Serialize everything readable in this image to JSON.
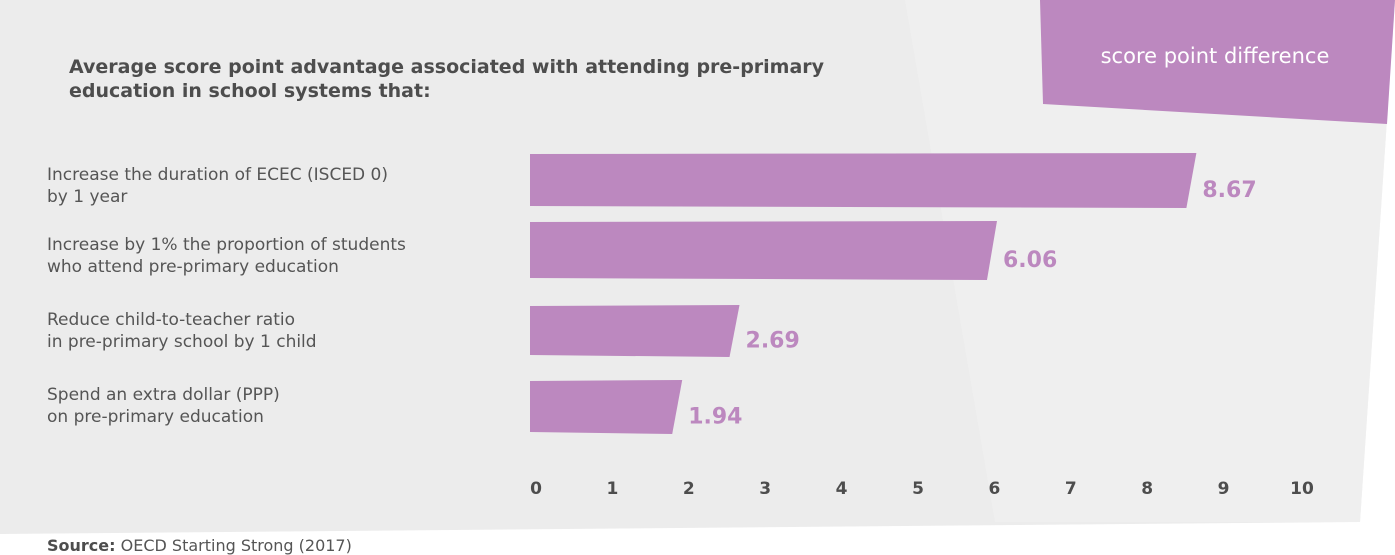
{
  "chart_data": {
    "type": "bar",
    "orientation": "horizontal",
    "title_lines": [
      "Average score point advantage associated with attending pre-primary",
      "education in school systems that:"
    ],
    "unit_label": "score point difference",
    "categories": [
      {
        "lines": [
          "Increase the duration of ECEC (ISCED 0)",
          "by 1 year"
        ]
      },
      {
        "lines": [
          "Increase by 1% the proportion of students",
          "who attend pre-primary education"
        ]
      },
      {
        "lines": [
          "Reduce child-to-teacher ratio",
          "in pre-primary school by 1 child"
        ]
      },
      {
        "lines": [
          "Spend an extra dollar (PPP)",
          "on pre-primary education"
        ]
      }
    ],
    "values": [
      8.67,
      6.06,
      2.69,
      1.94
    ],
    "value_labels": [
      "8.67",
      "6.06",
      "2.69",
      "1.94"
    ],
    "xlim": [
      0,
      10
    ],
    "x_ticks": [
      "0",
      "1",
      "2",
      "3",
      "4",
      "5",
      "6",
      "7",
      "8",
      "9",
      "10"
    ],
    "grid": false,
    "colors": {
      "bar": "#bc88bf",
      "value_label": "#bc88bf",
      "badge": "#bc88bf",
      "panel": "#ececec",
      "tick_label": "#4d4d4d"
    }
  },
  "source": {
    "label": "Source:",
    "text": "OECD Starting Strong (2017)"
  }
}
